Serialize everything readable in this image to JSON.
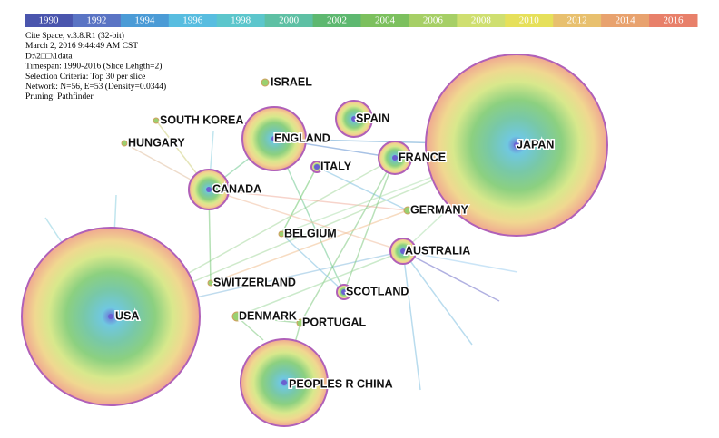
{
  "timeline": {
    "years": [
      "1990",
      "1992",
      "1994",
      "1996",
      "1998",
      "2000",
      "2002",
      "2004",
      "2006",
      "2008",
      "2010",
      "2012",
      "2014",
      "2016"
    ]
  },
  "info": [
    "Cite Space, v.3.8.R1 (32-bit)",
    "March 2, 2016 9:44:49 AM CST",
    "D:\\2□□\\1data",
    "Timespan: 1990-2016 (Slice Lehgth=2)",
    "Selection Criteria: Top 30 per slice",
    "Network: N=56, E=53 (Density=0.0344)",
    "Pruning: Pathfinder"
  ],
  "nodes": [
    {
      "label": "ISRAEL"
    },
    {
      "label": "SOUTH KOREA"
    },
    {
      "label": "HUNGARY"
    },
    {
      "label": "ENGLAND"
    },
    {
      "label": "SPAIN"
    },
    {
      "label": "ITALY"
    },
    {
      "label": "FRANCE"
    },
    {
      "label": "JAPAN"
    },
    {
      "label": "CANADA"
    },
    {
      "label": "GERMANY"
    },
    {
      "label": "BELGIUM"
    },
    {
      "label": "AUSTRALIA"
    },
    {
      "label": "SWITZERLAND"
    },
    {
      "label": "SCOTLAND"
    },
    {
      "label": "USA"
    },
    {
      "label": "DENMARK"
    },
    {
      "label": "PORTUGAL"
    },
    {
      "label": "PEOPLES R CHINA"
    }
  ]
}
